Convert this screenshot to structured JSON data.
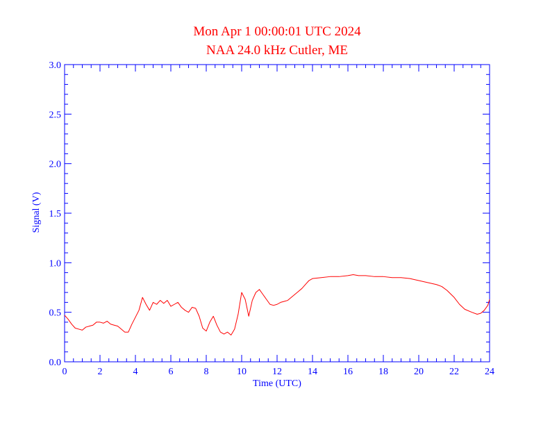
{
  "chart_data": {
    "type": "line",
    "title": "Mon Apr 1 00:00:01 UTC 2024",
    "subtitle": "NAA 24.0 kHz Cutler, ME",
    "xlabel": "Time (UTC)",
    "ylabel": "Signal (V)",
    "xlim": [
      0,
      24
    ],
    "ylim": [
      0.0,
      3.0
    ],
    "x_ticks": [
      0,
      2,
      4,
      6,
      8,
      10,
      12,
      14,
      16,
      18,
      20,
      22,
      24
    ],
    "x_tick_labels": [
      "0",
      "2",
      "4",
      "6",
      "8",
      "10",
      "12",
      "14",
      "16",
      "18",
      "20",
      "22",
      "24"
    ],
    "y_ticks": [
      0.0,
      0.5,
      1.0,
      1.5,
      2.0,
      2.5,
      3.0
    ],
    "y_tick_labels": [
      "0.0",
      "0.5",
      "1.0",
      "1.5",
      "2.0",
      "2.5",
      "3.0"
    ],
    "grid": false,
    "colors": {
      "title": "#ff0000",
      "axes": "#0000ff",
      "line": "#ff0000"
    },
    "series": [
      {
        "x": [
          0.0,
          0.2,
          0.4,
          0.6,
          0.8,
          1.0,
          1.2,
          1.4,
          1.6,
          1.8,
          2.0,
          2.2,
          2.4,
          2.6,
          2.8,
          3.0,
          3.2,
          3.4,
          3.6,
          3.8,
          4.0,
          4.2,
          4.4,
          4.6,
          4.8,
          5.0,
          5.2,
          5.4,
          5.6,
          5.8,
          6.0,
          6.2,
          6.4,
          6.6,
          6.8,
          7.0,
          7.2,
          7.4,
          7.6,
          7.8,
          8.0,
          8.2,
          8.4,
          8.6,
          8.8,
          9.0,
          9.2,
          9.4,
          9.6,
          9.8,
          10.0,
          10.2,
          10.4,
          10.6,
          10.8,
          11.0,
          11.2,
          11.4,
          11.6,
          11.8,
          12.0,
          12.2,
          12.4,
          12.6,
          12.8,
          13.0,
          13.2,
          13.4,
          13.6,
          13.8,
          14.0,
          14.5,
          15.0,
          15.5,
          16.0,
          16.3,
          16.6,
          17.0,
          17.5,
          18.0,
          18.5,
          19.0,
          19.5,
          20.0,
          20.5,
          21.0,
          21.3,
          21.6,
          22.0,
          22.3,
          22.6,
          23.0,
          23.3,
          23.5,
          23.7,
          23.9,
          24.0
        ],
        "values": [
          0.47,
          0.43,
          0.38,
          0.34,
          0.33,
          0.32,
          0.35,
          0.36,
          0.37,
          0.4,
          0.4,
          0.39,
          0.41,
          0.38,
          0.37,
          0.36,
          0.33,
          0.3,
          0.3,
          0.38,
          0.45,
          0.52,
          0.65,
          0.58,
          0.52,
          0.6,
          0.58,
          0.62,
          0.59,
          0.62,
          0.56,
          0.58,
          0.6,
          0.55,
          0.52,
          0.5,
          0.55,
          0.54,
          0.46,
          0.34,
          0.31,
          0.4,
          0.46,
          0.37,
          0.3,
          0.28,
          0.3,
          0.27,
          0.33,
          0.48,
          0.7,
          0.63,
          0.46,
          0.62,
          0.7,
          0.73,
          0.68,
          0.63,
          0.58,
          0.57,
          0.58,
          0.6,
          0.61,
          0.62,
          0.65,
          0.68,
          0.71,
          0.74,
          0.78,
          0.82,
          0.84,
          0.85,
          0.86,
          0.86,
          0.87,
          0.88,
          0.87,
          0.87,
          0.86,
          0.86,
          0.85,
          0.85,
          0.84,
          0.82,
          0.8,
          0.78,
          0.76,
          0.72,
          0.65,
          0.58,
          0.53,
          0.5,
          0.48,
          0.49,
          0.52,
          0.57,
          0.63
        ]
      }
    ]
  }
}
